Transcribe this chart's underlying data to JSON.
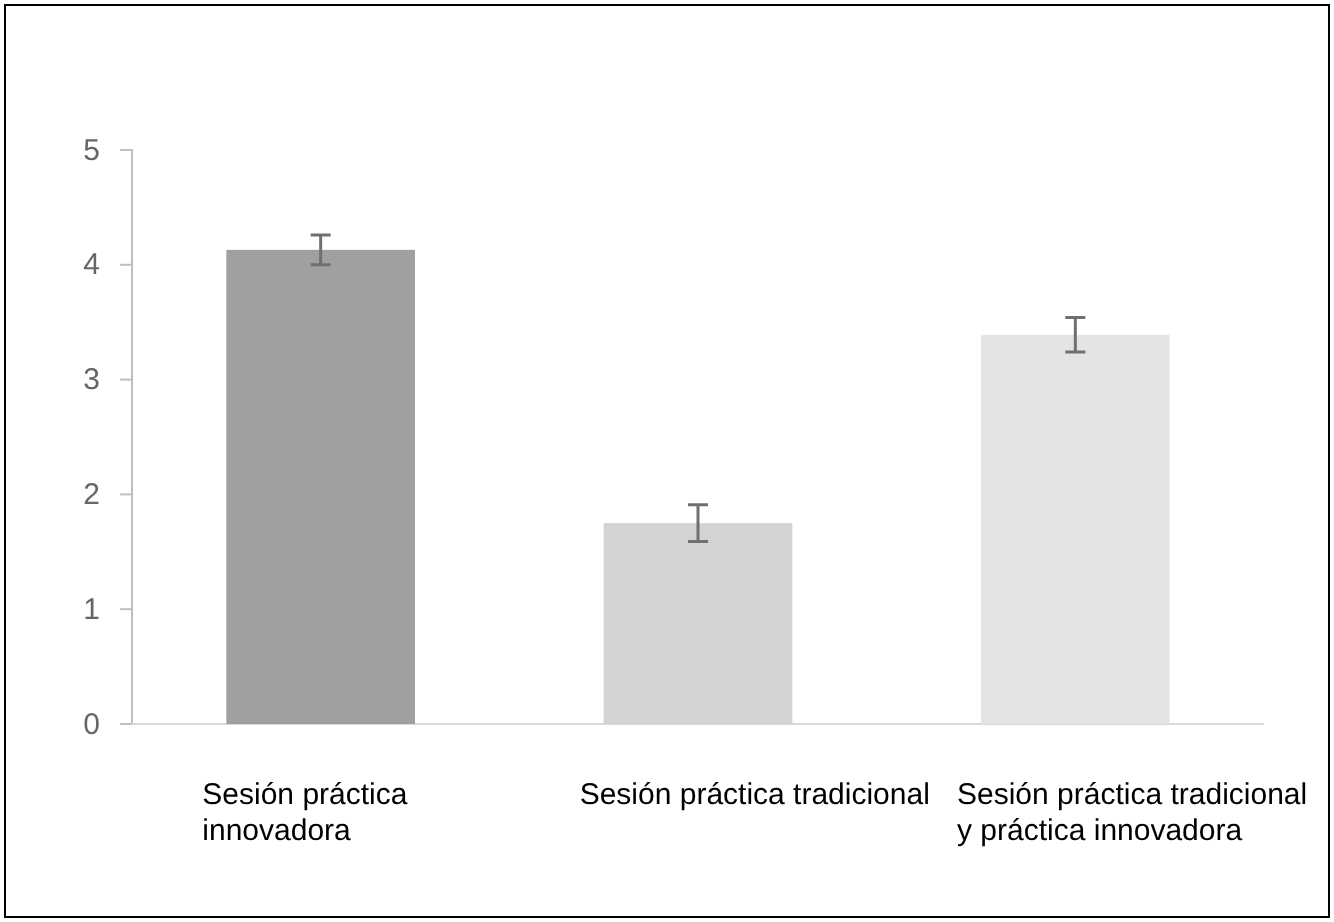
{
  "chart_data": {
    "type": "bar",
    "categories": [
      "Sesión práctica innovadora",
      "Sesión práctica tradicional",
      "Sesión práctica tradicional y práctica innovadora"
    ],
    "values": [
      4.13,
      1.75,
      3.39
    ],
    "colors": [
      "#a0a0a0",
      "#d3d3d3",
      "#e4e4e4"
    ],
    "errors": [
      0.13,
      0.16,
      0.15
    ],
    "ylim": [
      0,
      5
    ],
    "yticks": [
      0,
      1,
      2,
      3,
      4,
      5
    ],
    "grid": false
  }
}
